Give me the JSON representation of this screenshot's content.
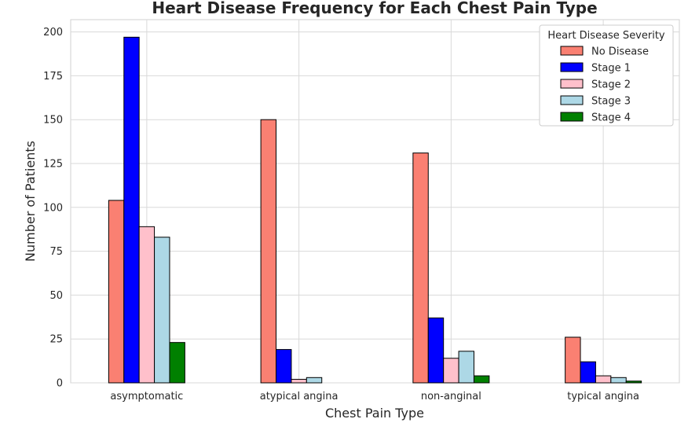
{
  "chart_data": {
    "type": "bar",
    "title": "Heart Disease Frequency for Each Chest Pain Type",
    "xlabel": "Chest Pain Type",
    "ylabel": "Number of Patients",
    "categories": [
      "asymptomatic",
      "atypical angina",
      "non-anginal",
      "typical angina"
    ],
    "ylim": [
      0,
      207
    ],
    "yticks": [
      0,
      25,
      50,
      75,
      100,
      125,
      150,
      175,
      200
    ],
    "grid": true,
    "legend": {
      "title": "Heart Disease Severity",
      "placement": "top-right"
    },
    "series": [
      {
        "name": "No Disease",
        "color": "#fa8072",
        "values": [
          104,
          150,
          131,
          26
        ]
      },
      {
        "name": "Stage 1",
        "color": "#0000ff",
        "values": [
          197,
          19,
          37,
          12
        ]
      },
      {
        "name": "Stage 2",
        "color": "#ffc0cb",
        "values": [
          89,
          2,
          14,
          4
        ]
      },
      {
        "name": "Stage 3",
        "color": "#add8e6",
        "values": [
          83,
          3,
          18,
          3
        ]
      },
      {
        "name": "Stage 4",
        "color": "#008000",
        "values": [
          23,
          0,
          4,
          1
        ]
      }
    ]
  }
}
